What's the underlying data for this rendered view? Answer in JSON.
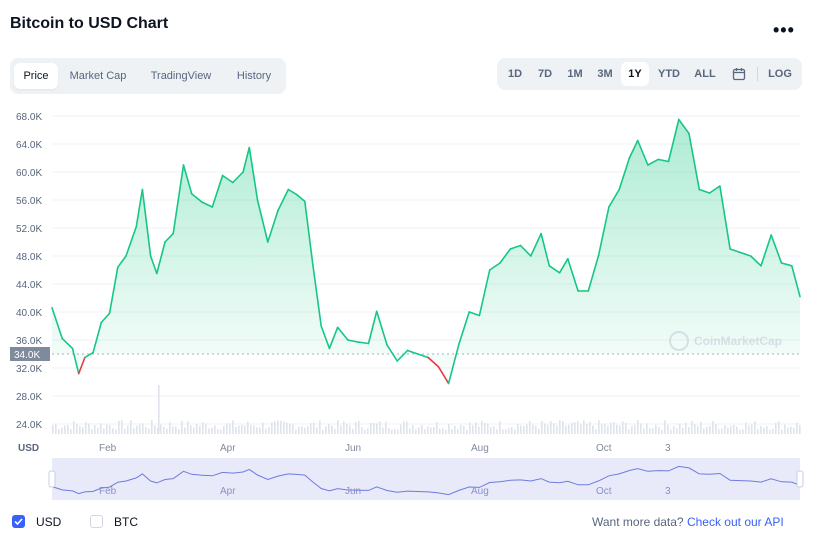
{
  "header": {
    "title": "Bitcoin to USD Chart",
    "more_label": "•••"
  },
  "tabs": [
    {
      "label": "Price",
      "active": true
    },
    {
      "label": "Market Cap",
      "active": false
    },
    {
      "label": "TradingView",
      "active": false
    },
    {
      "label": "History",
      "active": false
    }
  ],
  "ranges": [
    {
      "label": "1D",
      "active": false
    },
    {
      "label": "7D",
      "active": false
    },
    {
      "label": "1M",
      "active": false
    },
    {
      "label": "3M",
      "active": false
    },
    {
      "label": "1Y",
      "active": true
    },
    {
      "label": "YTD",
      "active": false
    },
    {
      "label": "ALL",
      "active": false
    }
  ],
  "calendar_icon": "calendar-icon",
  "log_label": "LOG",
  "watermark": "CoinMarketCap",
  "colors": {
    "up": "#16c784",
    "down": "#ea3943",
    "navigator": "#6f7bdd",
    "accent": "#3861fb"
  },
  "chart_data": {
    "type": "line",
    "ylabel": "USD",
    "y_ticks": [
      "68.0K",
      "64.0K",
      "60.0K",
      "56.0K",
      "52.0K",
      "48.0K",
      "44.0K",
      "40.0K",
      "36.0K",
      "32.0K",
      "28.0K",
      "24.0K"
    ],
    "y_tick_values": [
      68000,
      64000,
      60000,
      56000,
      52000,
      48000,
      44000,
      40000,
      36000,
      32000,
      28000,
      24000
    ],
    "ylim": [
      24000,
      68000
    ],
    "x_ticks": [
      "Feb",
      "Apr",
      "Jun",
      "Aug",
      "Oct",
      "3"
    ],
    "current_price_label": "34.0K",
    "current_price": 34000,
    "baseline": 34000,
    "x_range": [
      "2021-01-08",
      "2022-01-07"
    ],
    "series": [
      {
        "x": [
          "2021-01-08",
          "2021-01-13",
          "2021-01-18",
          "2021-01-21",
          "2021-01-24",
          "2021-01-28",
          "2021-02-01",
          "2021-02-05",
          "2021-02-09",
          "2021-02-13",
          "2021-02-18",
          "2021-02-21",
          "2021-02-25",
          "2021-02-28",
          "2021-03-04",
          "2021-03-08",
          "2021-03-13",
          "2021-03-17",
          "2021-03-22",
          "2021-03-27",
          "2021-04-01",
          "2021-04-06",
          "2021-04-11",
          "2021-04-14",
          "2021-04-18",
          "2021-04-23",
          "2021-04-28",
          "2021-05-03",
          "2021-05-07",
          "2021-05-11",
          "2021-05-15",
          "2021-05-19",
          "2021-05-23",
          "2021-05-27",
          "2021-06-01",
          "2021-06-06",
          "2021-06-11",
          "2021-06-15",
          "2021-06-20",
          "2021-06-25",
          "2021-06-30",
          "2021-07-05",
          "2021-07-10",
          "2021-07-15",
          "2021-07-20",
          "2021-07-25",
          "2021-07-30",
          "2021-08-04",
          "2021-08-09",
          "2021-08-14",
          "2021-08-19",
          "2021-08-24",
          "2021-08-29",
          "2021-09-03",
          "2021-09-07",
          "2021-09-12",
          "2021-09-16",
          "2021-09-21",
          "2021-09-26",
          "2021-10-01",
          "2021-10-06",
          "2021-10-11",
          "2021-10-16",
          "2021-10-20",
          "2021-10-25",
          "2021-10-30",
          "2021-11-04",
          "2021-11-09",
          "2021-11-14",
          "2021-11-19",
          "2021-11-24",
          "2021-11-29",
          "2021-12-04",
          "2021-12-09",
          "2021-12-14",
          "2021-12-19",
          "2021-12-24",
          "2021-12-29",
          "2022-01-03",
          "2022-01-07"
        ],
        "y": [
          40600,
          36200,
          34800,
          31200,
          33500,
          34200,
          38500,
          39800,
          46400,
          48000,
          52200,
          57500,
          48000,
          45500,
          50000,
          51200,
          61000,
          56900,
          55700,
          55000,
          59500,
          58500,
          60000,
          63500,
          56000,
          50000,
          54500,
          57500,
          56800,
          55800,
          46600,
          38000,
          34800,
          37800,
          36000,
          35700,
          35500,
          40100,
          35300,
          33000,
          34500,
          34000,
          33500,
          32200,
          29800,
          35400,
          40000,
          39500,
          46000,
          47000,
          49000,
          49500,
          48000,
          51200,
          46600,
          45600,
          47600,
          43000,
          43000,
          48100,
          55000,
          57500,
          62000,
          64500,
          61000,
          61800,
          61500,
          67500,
          65500,
          57500,
          57000,
          58000,
          49000,
          48500,
          48000,
          46600,
          51000,
          47000,
          46600,
          42200
        ]
      }
    ],
    "volume_note": "volume bars shown along bottom",
    "navigator": {
      "x_ticks": [
        "Feb",
        "Apr",
        "Jun",
        "Aug",
        "Oct",
        "3"
      ]
    }
  },
  "footer": {
    "usd_label": "USD",
    "usd_checked": true,
    "btc_label": "BTC",
    "btc_checked": false,
    "prompt": "Want more data?",
    "api_link": "Check out our API"
  }
}
